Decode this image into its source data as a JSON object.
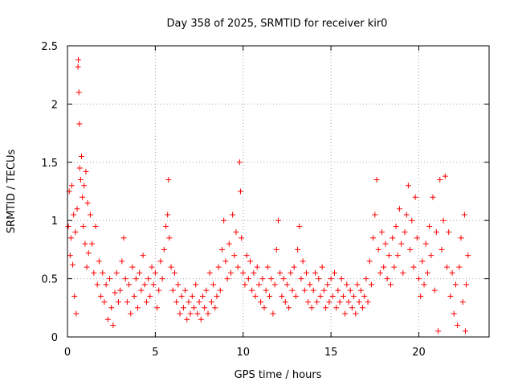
{
  "chart_data": {
    "type": "scatter",
    "title": "Day 358 of 2025, SRMTID for receiver kir0",
    "xlabel": "GPS time / hours",
    "ylabel": "SRMTID / TECUs",
    "xlim": [
      0,
      24
    ],
    "ylim": [
      0,
      2.5
    ],
    "xticks": [
      0,
      5,
      10,
      15,
      20
    ],
    "yticks": [
      0,
      0.5,
      1,
      1.5,
      2,
      2.5
    ],
    "xtick_labels": [
      "0",
      "5",
      "10",
      "15",
      "20"
    ],
    "ytick_labels": [
      "0",
      "0.5",
      "1",
      "1.5",
      "2",
      "2.5"
    ],
    "grid": true,
    "marker": "+",
    "color": "#ff0000",
    "series": [
      {
        "name": "kir0",
        "points": [
          [
            0.05,
            0.95
          ],
          [
            0.1,
            1.25
          ],
          [
            0.15,
            0.7
          ],
          [
            0.2,
            0.85
          ],
          [
            0.25,
            1.3
          ],
          [
            0.3,
            0.62
          ],
          [
            0.35,
            1.05
          ],
          [
            0.4,
            0.35
          ],
          [
            0.45,
            0.9
          ],
          [
            0.5,
            0.2
          ],
          [
            0.55,
            1.1
          ],
          [
            0.6,
            2.32
          ],
          [
            0.62,
            2.38
          ],
          [
            0.65,
            2.1
          ],
          [
            0.68,
            1.83
          ],
          [
            0.7,
            1.45
          ],
          [
            0.75,
            1.35
          ],
          [
            0.8,
            1.55
          ],
          [
            0.85,
            1.2
          ],
          [
            0.9,
            0.95
          ],
          [
            0.95,
            1.3
          ],
          [
            1.0,
            0.8
          ],
          [
            1.05,
            1.42
          ],
          [
            1.1,
            0.6
          ],
          [
            1.15,
            1.15
          ],
          [
            1.2,
            0.72
          ],
          [
            1.3,
            1.05
          ],
          [
            1.4,
            0.8
          ],
          [
            1.5,
            0.55
          ],
          [
            1.6,
            0.95
          ],
          [
            1.7,
            0.45
          ],
          [
            1.8,
            0.65
          ],
          [
            1.9,
            0.35
          ],
          [
            2.0,
            0.55
          ],
          [
            2.1,
            0.3
          ],
          [
            2.2,
            0.45
          ],
          [
            2.3,
            0.15
          ],
          [
            2.4,
            0.5
          ],
          [
            2.5,
            0.25
          ],
          [
            2.6,
            0.1
          ],
          [
            2.7,
            0.38
          ],
          [
            2.8,
            0.55
          ],
          [
            2.9,
            0.3
          ],
          [
            3.0,
            0.4
          ],
          [
            3.1,
            0.65
          ],
          [
            3.2,
            0.85
          ],
          [
            3.3,
            0.5
          ],
          [
            3.4,
            0.3
          ],
          [
            3.5,
            0.45
          ],
          [
            3.6,
            0.2
          ],
          [
            3.7,
            0.6
          ],
          [
            3.8,
            0.35
          ],
          [
            3.9,
            0.5
          ],
          [
            4.0,
            0.25
          ],
          [
            4.1,
            0.55
          ],
          [
            4.2,
            0.4
          ],
          [
            4.3,
            0.7
          ],
          [
            4.4,
            0.45
          ],
          [
            4.5,
            0.3
          ],
          [
            4.6,
            0.5
          ],
          [
            4.7,
            0.35
          ],
          [
            4.8,
            0.6
          ],
          [
            4.9,
            0.45
          ],
          [
            5.0,
            0.55
          ],
          [
            5.1,
            0.25
          ],
          [
            5.2,
            0.4
          ],
          [
            5.3,
            0.65
          ],
          [
            5.4,
            0.5
          ],
          [
            5.5,
            0.75
          ],
          [
            5.6,
            0.95
          ],
          [
            5.7,
            1.05
          ],
          [
            5.75,
            1.35
          ],
          [
            5.8,
            0.85
          ],
          [
            5.9,
            0.6
          ],
          [
            6.0,
            0.4
          ],
          [
            6.1,
            0.55
          ],
          [
            6.2,
            0.3
          ],
          [
            6.3,
            0.45
          ],
          [
            6.4,
            0.2
          ],
          [
            6.5,
            0.35
          ],
          [
            6.6,
            0.25
          ],
          [
            6.7,
            0.4
          ],
          [
            6.8,
            0.15
          ],
          [
            6.9,
            0.3
          ],
          [
            7.0,
            0.2
          ],
          [
            7.1,
            0.35
          ],
          [
            7.2,
            0.25
          ],
          [
            7.3,
            0.45
          ],
          [
            7.4,
            0.2
          ],
          [
            7.5,
            0.3
          ],
          [
            7.6,
            0.15
          ],
          [
            7.7,
            0.35
          ],
          [
            7.8,
            0.25
          ],
          [
            7.9,
            0.4
          ],
          [
            8.0,
            0.2
          ],
          [
            8.1,
            0.55
          ],
          [
            8.2,
            0.3
          ],
          [
            8.3,
            0.45
          ],
          [
            8.4,
            0.25
          ],
          [
            8.5,
            0.35
          ],
          [
            8.6,
            0.6
          ],
          [
            8.7,
            0.4
          ],
          [
            8.8,
            0.75
          ],
          [
            8.9,
            1.0
          ],
          [
            9.0,
            0.65
          ],
          [
            9.1,
            0.5
          ],
          [
            9.2,
            0.8
          ],
          [
            9.3,
            0.55
          ],
          [
            9.4,
            1.05
          ],
          [
            9.5,
            0.7
          ],
          [
            9.6,
            0.9
          ],
          [
            9.7,
            0.6
          ],
          [
            9.8,
            1.5
          ],
          [
            9.85,
            1.25
          ],
          [
            9.9,
            0.85
          ],
          [
            10.0,
            0.55
          ],
          [
            10.1,
            0.45
          ],
          [
            10.2,
            0.7
          ],
          [
            10.3,
            0.5
          ],
          [
            10.4,
            0.65
          ],
          [
            10.5,
            0.4
          ],
          [
            10.6,
            0.55
          ],
          [
            10.7,
            0.35
          ],
          [
            10.8,
            0.6
          ],
          [
            10.9,
            0.45
          ],
          [
            11.0,
            0.3
          ],
          [
            11.1,
            0.5
          ],
          [
            11.2,
            0.25
          ],
          [
            11.3,
            0.4
          ],
          [
            11.4,
            0.6
          ],
          [
            11.5,
            0.35
          ],
          [
            11.6,
            0.5
          ],
          [
            11.7,
            0.2
          ],
          [
            11.8,
            0.45
          ],
          [
            11.9,
            0.75
          ],
          [
            12.0,
            1.0
          ],
          [
            12.1,
            0.55
          ],
          [
            12.2,
            0.35
          ],
          [
            12.3,
            0.5
          ],
          [
            12.4,
            0.3
          ],
          [
            12.5,
            0.45
          ],
          [
            12.6,
            0.25
          ],
          [
            12.7,
            0.55
          ],
          [
            12.8,
            0.4
          ],
          [
            12.9,
            0.6
          ],
          [
            13.0,
            0.35
          ],
          [
            13.1,
            0.75
          ],
          [
            13.2,
            0.95
          ],
          [
            13.3,
            0.5
          ],
          [
            13.4,
            0.65
          ],
          [
            13.5,
            0.4
          ],
          [
            13.6,
            0.55
          ],
          [
            13.7,
            0.3
          ],
          [
            13.8,
            0.45
          ],
          [
            13.9,
            0.25
          ],
          [
            14.0,
            0.4
          ],
          [
            14.1,
            0.55
          ],
          [
            14.2,
            0.3
          ],
          [
            14.3,
            0.5
          ],
          [
            14.4,
            0.35
          ],
          [
            14.5,
            0.6
          ],
          [
            14.6,
            0.4
          ],
          [
            14.7,
            0.25
          ],
          [
            14.8,
            0.45
          ],
          [
            14.9,
            0.3
          ],
          [
            15.0,
            0.5
          ],
          [
            15.1,
            0.35
          ],
          [
            15.2,
            0.55
          ],
          [
            15.3,
            0.25
          ],
          [
            15.4,
            0.4
          ],
          [
            15.5,
            0.3
          ],
          [
            15.6,
            0.5
          ],
          [
            15.7,
            0.35
          ],
          [
            15.8,
            0.2
          ],
          [
            15.9,
            0.45
          ],
          [
            16.0,
            0.3
          ],
          [
            16.1,
            0.4
          ],
          [
            16.2,
            0.25
          ],
          [
            16.3,
            0.35
          ],
          [
            16.4,
            0.2
          ],
          [
            16.5,
            0.45
          ],
          [
            16.6,
            0.3
          ],
          [
            16.7,
            0.4
          ],
          [
            16.8,
            0.25
          ],
          [
            16.9,
            0.35
          ],
          [
            17.0,
            0.5
          ],
          [
            17.1,
            0.3
          ],
          [
            17.2,
            0.65
          ],
          [
            17.3,
            0.45
          ],
          [
            17.4,
            0.85
          ],
          [
            17.5,
            1.05
          ],
          [
            17.6,
            1.35
          ],
          [
            17.7,
            0.75
          ],
          [
            17.8,
            0.55
          ],
          [
            17.9,
            0.9
          ],
          [
            18.0,
            0.6
          ],
          [
            18.1,
            0.8
          ],
          [
            18.2,
            0.5
          ],
          [
            18.3,
            0.7
          ],
          [
            18.4,
            0.45
          ],
          [
            18.5,
            0.85
          ],
          [
            18.6,
            0.6
          ],
          [
            18.7,
            0.95
          ],
          [
            18.8,
            0.7
          ],
          [
            18.9,
            1.1
          ],
          [
            19.0,
            0.8
          ],
          [
            19.1,
            0.55
          ],
          [
            19.2,
            0.9
          ],
          [
            19.3,
            1.05
          ],
          [
            19.4,
            1.3
          ],
          [
            19.5,
            0.75
          ],
          [
            19.6,
            1.0
          ],
          [
            19.7,
            0.6
          ],
          [
            19.8,
            1.2
          ],
          [
            19.9,
            0.85
          ],
          [
            20.0,
            0.5
          ],
          [
            20.1,
            0.35
          ],
          [
            20.2,
            0.65
          ],
          [
            20.3,
            0.45
          ],
          [
            20.4,
            0.8
          ],
          [
            20.5,
            0.55
          ],
          [
            20.6,
            0.95
          ],
          [
            20.7,
            0.7
          ],
          [
            20.8,
            1.2
          ],
          [
            20.9,
            0.4
          ],
          [
            21.0,
            0.9
          ],
          [
            21.1,
            0.05
          ],
          [
            21.2,
            1.35
          ],
          [
            21.3,
            0.75
          ],
          [
            21.4,
            1.0
          ],
          [
            21.5,
            1.38
          ],
          [
            21.6,
            0.6
          ],
          [
            21.7,
            0.9
          ],
          [
            21.8,
            0.35
          ],
          [
            21.9,
            0.55
          ],
          [
            22.0,
            0.2
          ],
          [
            22.1,
            0.45
          ],
          [
            22.2,
            0.1
          ],
          [
            22.3,
            0.6
          ],
          [
            22.4,
            0.85
          ],
          [
            22.5,
            0.3
          ],
          [
            22.6,
            1.05
          ],
          [
            22.65,
            0.05
          ],
          [
            22.7,
            0.45
          ],
          [
            22.8,
            0.7
          ]
        ]
      }
    ]
  }
}
